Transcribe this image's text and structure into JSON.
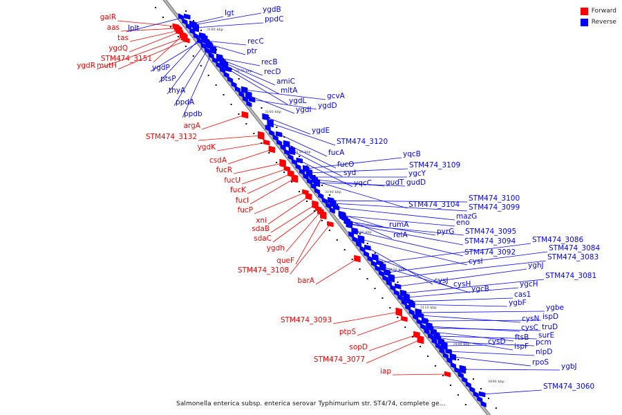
{
  "legend": {
    "items": [
      {
        "label": "Forward",
        "color": "#ff0000"
      },
      {
        "label": "Reverse",
        "color": "#0000ff"
      }
    ]
  },
  "caption": "Salmonella enterica subsp. enterica serovar Typhimurium str. ST4/74, complete ge...",
  "ticks": [
    "3180 kbp",
    "3170 kbp",
    "3160 kbp",
    "3150 kbp",
    "3140 kbp",
    "3130 kbp",
    "3120 kbp",
    "3110 kbp",
    "3100 kbp",
    "3090 kbp"
  ],
  "forward_genes": [
    "galR",
    "aas",
    "tas",
    "ygdQ",
    "STM474_3151",
    "ygdR",
    "mutH",
    "argA",
    "STM474_3132",
    "ygdK",
    "csdA",
    "fucR",
    "fucU",
    "fucK",
    "fucI",
    "fucP",
    "xni",
    "sdaB",
    "sdaC",
    "ygdh",
    "queF",
    "STM474_3108",
    "barA",
    "STM474_3093",
    "ptpS",
    "sopD",
    "STM474_3077",
    "iap"
  ],
  "reverse_genes": [
    "lplt",
    "ptsP",
    "ygdP",
    "thyA",
    "ppdA",
    "ppdb",
    "lgt",
    "ygdB",
    "ppdC",
    "recC",
    "ptr",
    "recB",
    "recD",
    "amiC",
    "mltA",
    "ygdL",
    "gcvA",
    "ygdI",
    "ygdD",
    "ygdE",
    "STM474_3120",
    "fucA",
    "fucO",
    "syd",
    "yqcC",
    "yqcB",
    "STM474_3109",
    "ygcY",
    "gudT",
    "gudD",
    "STM474_3104",
    "STM474_3100",
    "STM474_3099",
    "mazG",
    "rumA",
    "eno",
    "relA",
    "pyrG",
    "STM474_3095",
    "STM474_3094",
    "STM474_3092",
    "cysI",
    "cysJ",
    "cysH",
    "ygcB",
    "STM474_3086",
    "STM474_3084",
    "STM474_3083",
    "yghJ",
    "STM474_3081",
    "ygcH",
    "cas1",
    "ygbF",
    "ygbe",
    "cysN",
    "ispD",
    "cysC",
    "truD",
    "ftsB",
    "surE",
    "ispF",
    "pcm",
    "cysD",
    "nlpD",
    "rpoS",
    "ygbJ",
    "STM474_3060"
  ]
}
